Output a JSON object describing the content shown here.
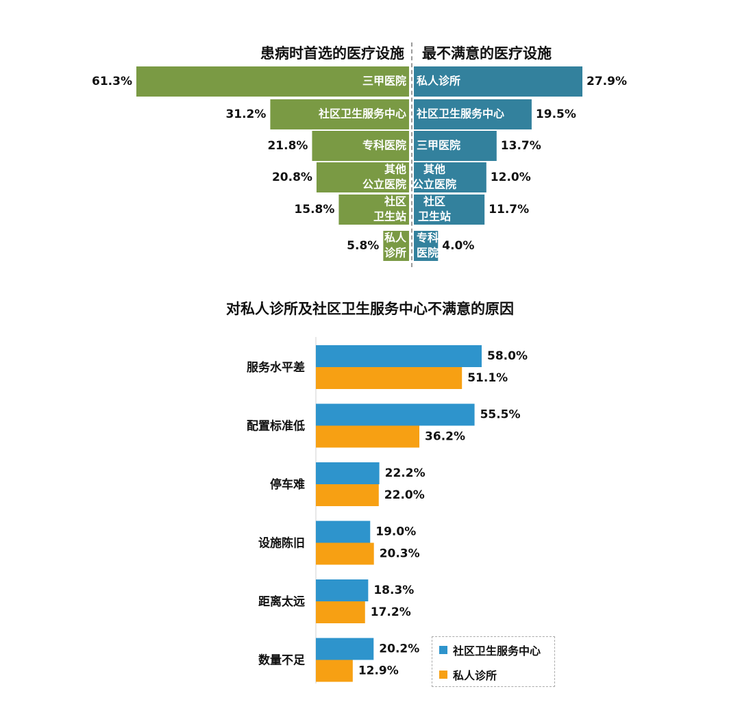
{
  "colors": {
    "green": "#7a9a44",
    "teal": "#33819d",
    "blue": "#2e94cc",
    "orange": "#f7a013"
  },
  "chart_data": [
    {
      "type": "bar",
      "orientation": "horizontal-diverging",
      "title": "患病时首选的医疗设施",
      "side": "left",
      "color": "#7a9a44",
      "categories": [
        "三甲医院",
        "社区卫生服务中心",
        "专科医院",
        "其他\n公立医院",
        "社区\n卫生站",
        "私人\n诊所"
      ],
      "values": [
        61.3,
        31.2,
        21.8,
        20.8,
        15.8,
        5.8
      ],
      "value_labels": [
        "61.3%",
        "31.2%",
        "21.8%",
        "20.8%",
        "15.8%",
        "5.8%"
      ],
      "unit": "%"
    },
    {
      "type": "bar",
      "orientation": "horizontal-diverging",
      "title": "最不满意的医疗设施",
      "side": "right",
      "color": "#33819d",
      "categories": [
        "私人诊所",
        "社区卫生服务中心",
        "三甲医院",
        "其他\n公立医院",
        "社区\n卫生站",
        "专科\n医院"
      ],
      "values": [
        27.9,
        19.5,
        13.7,
        12.0,
        11.7,
        4.0
      ],
      "value_labels": [
        "27.9%",
        "19.5%",
        "13.7%",
        "12.0%",
        "11.7%",
        "4.0%"
      ],
      "unit": "%"
    },
    {
      "type": "bar",
      "orientation": "horizontal",
      "title": "对私人诊所及社区卫生服务中心不满意的原因",
      "categories": [
        "服务水平差",
        "配置标准低",
        "停车难",
        "设施陈旧",
        "距离太远",
        "数量不足"
      ],
      "series": [
        {
          "name": "社区卫生服务中心",
          "color": "#2e94cc",
          "values": [
            58.0,
            55.5,
            22.2,
            19.0,
            18.3,
            20.2
          ],
          "value_labels": [
            "58.0%",
            "55.5%",
            "22.2%",
            "19.0%",
            "18.3%",
            "20.2%"
          ]
        },
        {
          "name": "私人诊所",
          "color": "#f7a013",
          "values": [
            51.1,
            36.2,
            22.0,
            20.3,
            17.2,
            12.9
          ],
          "value_labels": [
            "51.1%",
            "36.2%",
            "22.0%",
            "20.3%",
            "17.2%",
            "12.9%"
          ]
        }
      ],
      "legend": "bottom-right",
      "unit": "%"
    }
  ]
}
